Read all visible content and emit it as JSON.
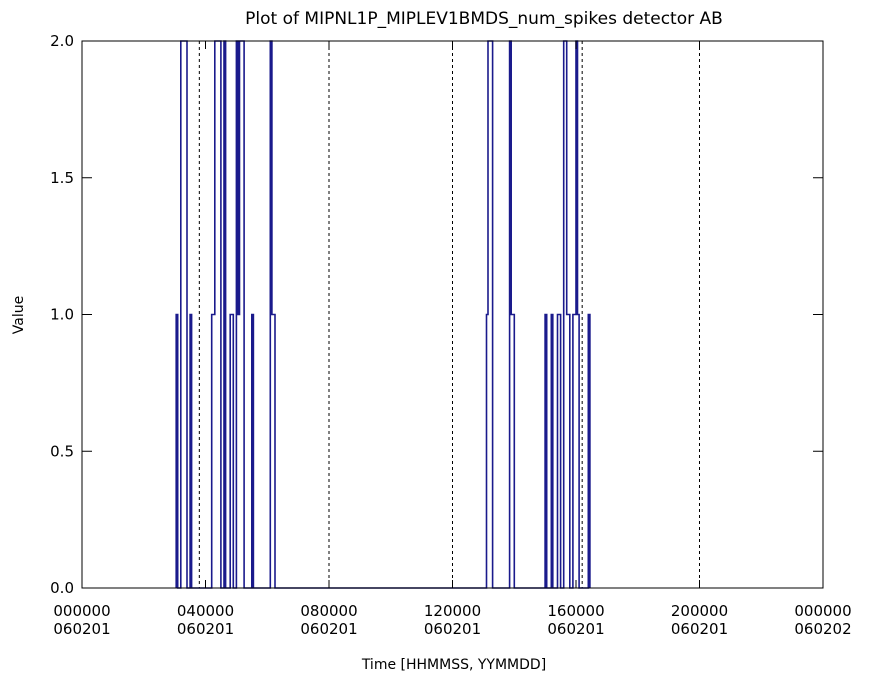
{
  "chart_data": {
    "type": "line",
    "title": "Plot of MIPNL1P_MIPLEV1BMDS_num_spikes detector AB",
    "xlabel": "Time [HHMMSS, YYMMDD]",
    "ylabel": "Value",
    "xlim": [
      0,
      24
    ],
    "ylim": [
      0,
      2
    ],
    "x_unit": "hours since 000000 060201",
    "x_ticks": [
      {
        "value": 0,
        "time": "000000",
        "date": "060201"
      },
      {
        "value": 4,
        "time": "040000",
        "date": "060201"
      },
      {
        "value": 8,
        "time": "080000",
        "date": "060201"
      },
      {
        "value": 12,
        "time": "120000",
        "date": "060201"
      },
      {
        "value": 16,
        "time": "160000",
        "date": "060201"
      },
      {
        "value": 20,
        "time": "200000",
        "date": "060201"
      },
      {
        "value": 24,
        "time": "000000",
        "date": "060202"
      }
    ],
    "y_ticks": [
      {
        "value": 0.0,
        "label": "0.0"
      },
      {
        "value": 0.5,
        "label": "0.5"
      },
      {
        "value": 1.0,
        "label": "1.0"
      },
      {
        "value": 1.5,
        "label": "1.5"
      },
      {
        "value": 2.0,
        "label": "2.0"
      }
    ],
    "vertical_markers": [
      3.8,
      8.0,
      12.0,
      16.2,
      20.0
    ],
    "series_color": "#1a1a8c",
    "marker_color": "#000000",
    "series": [
      {
        "points": [
          [
            3.05,
            0
          ],
          [
            3.05,
            1
          ],
          [
            3.1,
            1
          ],
          [
            3.1,
            0
          ],
          [
            3.2,
            0
          ],
          [
            3.2,
            2
          ],
          [
            3.4,
            2
          ],
          [
            3.4,
            0
          ],
          [
            3.5,
            0
          ],
          [
            3.5,
            1
          ],
          [
            3.55,
            1
          ],
          [
            3.55,
            0
          ],
          [
            4.2,
            0
          ],
          [
            4.2,
            1
          ],
          [
            4.3,
            1
          ],
          [
            4.3,
            2
          ],
          [
            4.5,
            2
          ],
          [
            4.5,
            0
          ],
          [
            4.6,
            0
          ],
          [
            4.6,
            2
          ],
          [
            4.65,
            2
          ],
          [
            4.65,
            0
          ],
          [
            4.8,
            0
          ],
          [
            4.8,
            1
          ],
          [
            4.9,
            1
          ],
          [
            4.9,
            0
          ],
          [
            5.0,
            0
          ],
          [
            5.0,
            2
          ],
          [
            5.05,
            2
          ],
          [
            5.05,
            1
          ],
          [
            5.1,
            1
          ],
          [
            5.1,
            2
          ],
          [
            5.25,
            2
          ],
          [
            5.25,
            0
          ],
          [
            5.5,
            0
          ],
          [
            5.5,
            1
          ],
          [
            5.55,
            1
          ],
          [
            5.55,
            0
          ],
          [
            6.1,
            0
          ],
          [
            6.1,
            2
          ],
          [
            6.15,
            2
          ],
          [
            6.15,
            1
          ],
          [
            6.25,
            1
          ],
          [
            6.25,
            0
          ],
          [
            13.1,
            0
          ],
          [
            13.1,
            1
          ],
          [
            13.15,
            1
          ],
          [
            13.15,
            2
          ],
          [
            13.3,
            2
          ],
          [
            13.3,
            0
          ],
          [
            13.85,
            0
          ],
          [
            13.85,
            2
          ],
          [
            13.9,
            2
          ],
          [
            13.9,
            1
          ],
          [
            14.0,
            1
          ],
          [
            14.0,
            0
          ],
          [
            15.0,
            0
          ],
          [
            15.0,
            1
          ],
          [
            15.05,
            1
          ],
          [
            15.05,
            0
          ],
          [
            15.2,
            0
          ],
          [
            15.2,
            1
          ],
          [
            15.25,
            1
          ],
          [
            15.25,
            0
          ],
          [
            15.4,
            0
          ],
          [
            15.4,
            1
          ],
          [
            15.5,
            1
          ],
          [
            15.5,
            0
          ],
          [
            15.6,
            0
          ],
          [
            15.6,
            2
          ],
          [
            15.7,
            2
          ],
          [
            15.7,
            1
          ],
          [
            15.8,
            1
          ],
          [
            15.8,
            0
          ],
          [
            15.9,
            0
          ],
          [
            15.9,
            1
          ],
          [
            16.0,
            1
          ],
          [
            16.0,
            2
          ],
          [
            16.05,
            2
          ],
          [
            16.05,
            1
          ],
          [
            16.1,
            1
          ],
          [
            16.1,
            0
          ],
          [
            16.4,
            0
          ],
          [
            16.4,
            1
          ],
          [
            16.45,
            1
          ],
          [
            16.45,
            0
          ]
        ]
      }
    ]
  }
}
